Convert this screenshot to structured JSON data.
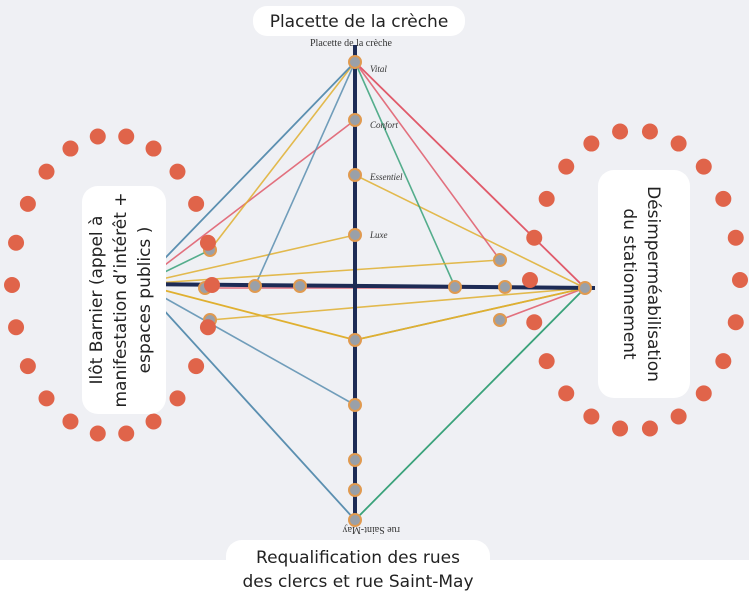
{
  "labels": {
    "top": "Placette de la crèche",
    "bottom": [
      "Requalification des rues",
      "des clercs et rue Saint-May"
    ],
    "left": [
      "Ilôt Barnier (appel à",
      "manifestation d’intérêt +",
      "espaces publics )"
    ],
    "right": [
      "Désimperméabilisation",
      "du stationnement"
    ]
  },
  "photo_texts": {
    "top_axis": "Placette de la crèche",
    "vital": "Vital",
    "confort": "Confort",
    "essentiel": "Essentiel",
    "luxe": "Luxe",
    "bottom_axis": "rue Saint-May"
  }
}
